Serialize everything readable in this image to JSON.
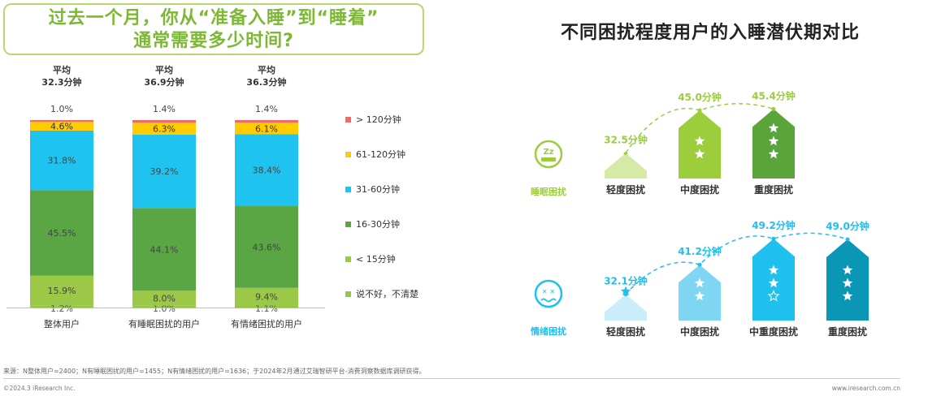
{
  "question": {
    "line1": "过去一个月，你从“准备入睡”到“睡着”",
    "line2": "通常需要多少时间?"
  },
  "right_title": "不同困扰程度用户的入睡潜伏期对比",
  "chart_data": [
    {
      "type": "bar",
      "stacked": true,
      "percent": true,
      "categories": [
        "整体用户",
        "有睡眠困扰的用户",
        "有情绪困扰的用户"
      ],
      "averages": [
        {
          "label": "平均",
          "value": "32.3分钟"
        },
        {
          "label": "平均",
          "value": "36.9分钟"
        },
        {
          "label": "平均",
          "value": "36.3分钟"
        }
      ],
      "series": [
        {
          "name": "说不好，不清楚",
          "color": "#92c940",
          "values": [
            1.2,
            1.0,
            1.1
          ]
        },
        {
          "name": "< 15分钟",
          "color": "#9cc848",
          "values": [
            15.9,
            8.0,
            9.4
          ]
        },
        {
          "name": "16-30分钟",
          "color": "#5aa544",
          "values": [
            45.5,
            44.1,
            43.6
          ]
        },
        {
          "name": "31-60分钟",
          "color": "#1fc3ef",
          "values": [
            31.8,
            39.2,
            38.4
          ]
        },
        {
          "name": "61-120分钟",
          "color": "#ffcc00",
          "values": [
            4.6,
            6.3,
            6.1
          ]
        },
        {
          "name": "> 120分钟",
          "color": "#ef6a6a",
          "values": [
            1.0,
            1.4,
            1.4
          ]
        }
      ],
      "legend_order": [
        "> 120分钟",
        "61-120分钟",
        "31-60分钟",
        "16-30分钟",
        "< 15分钟",
        "说不好，不清楚"
      ]
    },
    {
      "type": "bar",
      "group": "睡眠困扰",
      "categories": [
        "轻度困扰",
        "中度困扰",
        "重度困扰"
      ],
      "values": [
        32.5,
        45.0,
        45.4
      ],
      "labels": [
        "32.5分钟",
        "45.0分钟",
        "45.4分钟"
      ],
      "stars": [
        1,
        2,
        3
      ],
      "colors": [
        "#d6e9a6",
        "#9ccd3b",
        "#5aa53a"
      ],
      "label_color": "#9ccd3b"
    },
    {
      "type": "bar",
      "group": "情绪困扰",
      "categories": [
        "轻度困扰",
        "中度困扰",
        "中重度困扰",
        "重度困扰"
      ],
      "values": [
        32.1,
        41.2,
        49.2,
        49.0
      ],
      "labels": [
        "32.1分钟",
        "41.2分钟",
        "49.2分钟",
        "49.0分钟"
      ],
      "stars": [
        1,
        2,
        3,
        3
      ],
      "colors": [
        "#c9eefa",
        "#7fd6f3",
        "#1fbfee",
        "#0a96b5"
      ],
      "label_color": "#1fbfee"
    }
  ],
  "footer": {
    "source": "来源：N整体用户=2400；N有睡眠困扰的用户=1455；N有情绪困扰的用户=1636；于2024年2月通过艾瑞智研平台-消费洞察数据库调研获得。",
    "copyright": "©2024.3 iResearch Inc.",
    "site": "www.iresearch.com.cn"
  }
}
